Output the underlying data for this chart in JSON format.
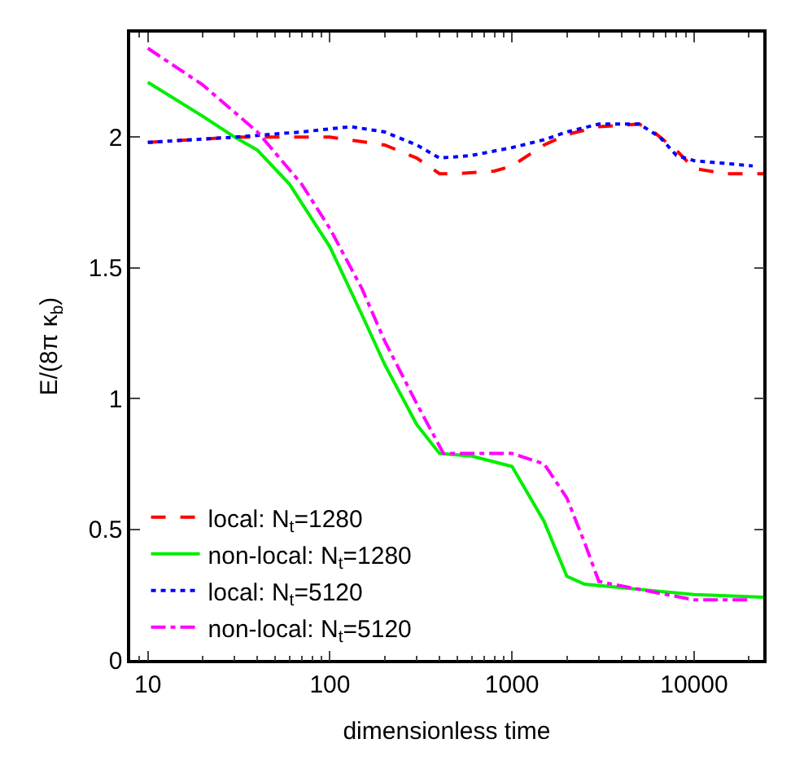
{
  "chart_data": {
    "type": "line",
    "xlabel": "dimensionless time",
    "ylabel": "E/(8π κ$_{b}$)",
    "log": "x",
    "xlim": [
      8,
      24000
    ],
    "xticks": [
      10,
      100,
      1000,
      10000
    ],
    "ylim": [
      0,
      2.4
    ],
    "yticks": [
      0,
      0.5,
      1,
      1.5,
      2
    ],
    "legend": "bottom left",
    "marker": "none",
    "series": [
      {
        "name": "local: N$_{t}$=1280",
        "color": "#ff0000",
        "line_style": "dashed",
        "x": [
          10,
          30,
          100,
          200,
          300,
          400,
          500,
          800,
          1000,
          1500,
          2000,
          3000,
          5000,
          6000,
          8000,
          10000,
          15000,
          24000
        ],
        "values": [
          1.98,
          2.0,
          2.0,
          1.97,
          1.92,
          1.86,
          1.86,
          1.87,
          1.89,
          1.97,
          2.01,
          2.04,
          2.05,
          2.02,
          1.95,
          1.88,
          1.86,
          1.86
        ]
      },
      {
        "name": "non-local: N$_{t}$=1280",
        "color": "#00ee00",
        "line_style": "solid",
        "x": [
          10,
          20,
          30,
          40,
          60,
          100,
          150,
          200,
          300,
          400,
          600,
          1000,
          1500,
          2000,
          2500,
          5000,
          10000,
          24000
        ],
        "values": [
          2.21,
          2.08,
          2.0,
          1.95,
          1.82,
          1.58,
          1.32,
          1.13,
          0.9,
          0.79,
          0.78,
          0.74,
          0.53,
          0.32,
          0.29,
          0.27,
          0.25,
          0.24
        ]
      },
      {
        "name": "local: N$_{t}$=5120",
        "color": "#0000ff",
        "line_style": "dotted",
        "x": [
          10,
          30,
          70,
          130,
          200,
          300,
          400,
          600,
          1000,
          1500,
          2000,
          3000,
          5000,
          6500,
          8000,
          10000,
          21000
        ],
        "values": [
          1.98,
          2.0,
          2.02,
          2.04,
          2.02,
          1.97,
          1.92,
          1.93,
          1.96,
          1.99,
          2.02,
          2.05,
          2.05,
          2.0,
          1.93,
          1.91,
          1.89
        ]
      },
      {
        "name": "non-local: N$_{t}$=5120",
        "color": "#ff00ff",
        "line_style": "dashdot",
        "x": [
          10,
          20,
          40,
          70,
          100,
          150,
          200,
          300,
          420,
          600,
          1000,
          1500,
          2000,
          2500,
          3000,
          5000,
          10000,
          20000
        ],
        "values": [
          2.34,
          2.2,
          2.02,
          1.82,
          1.65,
          1.42,
          1.22,
          0.98,
          0.79,
          0.79,
          0.79,
          0.75,
          0.62,
          0.45,
          0.3,
          0.27,
          0.23,
          0.23
        ]
      }
    ]
  }
}
